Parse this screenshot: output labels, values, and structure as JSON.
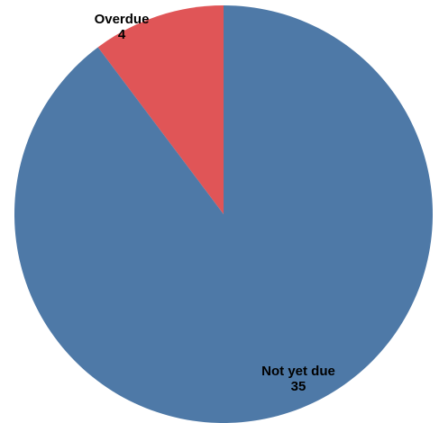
{
  "chart_data": {
    "type": "pie",
    "slices": [
      {
        "label": "Overdue",
        "value": 4,
        "value_text": "4",
        "color": "#e05557"
      },
      {
        "label": "Not yet due",
        "value": 35,
        "value_text": "35",
        "color": "#4e79a7"
      }
    ],
    "start": "12 o'clock",
    "direction": "counterclockwise",
    "legend": "none"
  }
}
